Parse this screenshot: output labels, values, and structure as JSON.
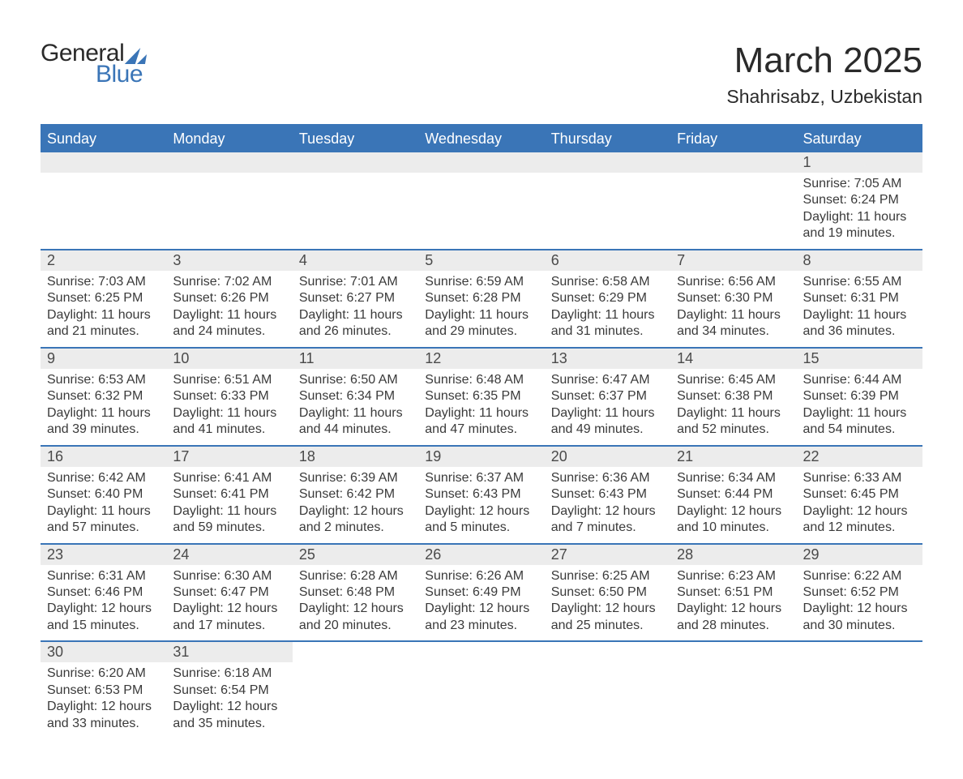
{
  "brand": {
    "word1": "General",
    "word2": "Blue",
    "word1_color": "#2a2a2a",
    "word2_color": "#3a75b7"
  },
  "title": {
    "month_year": "March 2025",
    "location": "Shahrisabz, Uzbekistan",
    "title_fontsize": 44,
    "location_fontsize": 23
  },
  "colors": {
    "header_bg": "#3a75b7",
    "header_text": "#ffffff",
    "daynum_bg": "#ececec",
    "text": "#3a3a3a",
    "row_border": "#3a75b7",
    "page_bg": "#ffffff"
  },
  "weekdays": [
    "Sunday",
    "Monday",
    "Tuesday",
    "Wednesday",
    "Thursday",
    "Friday",
    "Saturday"
  ],
  "weeks": [
    [
      {
        "day": "",
        "sunrise": "",
        "sunset": "",
        "daylight1": "",
        "daylight2": ""
      },
      {
        "day": "",
        "sunrise": "",
        "sunset": "",
        "daylight1": "",
        "daylight2": ""
      },
      {
        "day": "",
        "sunrise": "",
        "sunset": "",
        "daylight1": "",
        "daylight2": ""
      },
      {
        "day": "",
        "sunrise": "",
        "sunset": "",
        "daylight1": "",
        "daylight2": ""
      },
      {
        "day": "",
        "sunrise": "",
        "sunset": "",
        "daylight1": "",
        "daylight2": ""
      },
      {
        "day": "",
        "sunrise": "",
        "sunset": "",
        "daylight1": "",
        "daylight2": ""
      },
      {
        "day": "1",
        "sunrise": "Sunrise: 7:05 AM",
        "sunset": "Sunset: 6:24 PM",
        "daylight1": "Daylight: 11 hours",
        "daylight2": "and 19 minutes."
      }
    ],
    [
      {
        "day": "2",
        "sunrise": "Sunrise: 7:03 AM",
        "sunset": "Sunset: 6:25 PM",
        "daylight1": "Daylight: 11 hours",
        "daylight2": "and 21 minutes."
      },
      {
        "day": "3",
        "sunrise": "Sunrise: 7:02 AM",
        "sunset": "Sunset: 6:26 PM",
        "daylight1": "Daylight: 11 hours",
        "daylight2": "and 24 minutes."
      },
      {
        "day": "4",
        "sunrise": "Sunrise: 7:01 AM",
        "sunset": "Sunset: 6:27 PM",
        "daylight1": "Daylight: 11 hours",
        "daylight2": "and 26 minutes."
      },
      {
        "day": "5",
        "sunrise": "Sunrise: 6:59 AM",
        "sunset": "Sunset: 6:28 PM",
        "daylight1": "Daylight: 11 hours",
        "daylight2": "and 29 minutes."
      },
      {
        "day": "6",
        "sunrise": "Sunrise: 6:58 AM",
        "sunset": "Sunset: 6:29 PM",
        "daylight1": "Daylight: 11 hours",
        "daylight2": "and 31 minutes."
      },
      {
        "day": "7",
        "sunrise": "Sunrise: 6:56 AM",
        "sunset": "Sunset: 6:30 PM",
        "daylight1": "Daylight: 11 hours",
        "daylight2": "and 34 minutes."
      },
      {
        "day": "8",
        "sunrise": "Sunrise: 6:55 AM",
        "sunset": "Sunset: 6:31 PM",
        "daylight1": "Daylight: 11 hours",
        "daylight2": "and 36 minutes."
      }
    ],
    [
      {
        "day": "9",
        "sunrise": "Sunrise: 6:53 AM",
        "sunset": "Sunset: 6:32 PM",
        "daylight1": "Daylight: 11 hours",
        "daylight2": "and 39 minutes."
      },
      {
        "day": "10",
        "sunrise": "Sunrise: 6:51 AM",
        "sunset": "Sunset: 6:33 PM",
        "daylight1": "Daylight: 11 hours",
        "daylight2": "and 41 minutes."
      },
      {
        "day": "11",
        "sunrise": "Sunrise: 6:50 AM",
        "sunset": "Sunset: 6:34 PM",
        "daylight1": "Daylight: 11 hours",
        "daylight2": "and 44 minutes."
      },
      {
        "day": "12",
        "sunrise": "Sunrise: 6:48 AM",
        "sunset": "Sunset: 6:35 PM",
        "daylight1": "Daylight: 11 hours",
        "daylight2": "and 47 minutes."
      },
      {
        "day": "13",
        "sunrise": "Sunrise: 6:47 AM",
        "sunset": "Sunset: 6:37 PM",
        "daylight1": "Daylight: 11 hours",
        "daylight2": "and 49 minutes."
      },
      {
        "day": "14",
        "sunrise": "Sunrise: 6:45 AM",
        "sunset": "Sunset: 6:38 PM",
        "daylight1": "Daylight: 11 hours",
        "daylight2": "and 52 minutes."
      },
      {
        "day": "15",
        "sunrise": "Sunrise: 6:44 AM",
        "sunset": "Sunset: 6:39 PM",
        "daylight1": "Daylight: 11 hours",
        "daylight2": "and 54 minutes."
      }
    ],
    [
      {
        "day": "16",
        "sunrise": "Sunrise: 6:42 AM",
        "sunset": "Sunset: 6:40 PM",
        "daylight1": "Daylight: 11 hours",
        "daylight2": "and 57 minutes."
      },
      {
        "day": "17",
        "sunrise": "Sunrise: 6:41 AM",
        "sunset": "Sunset: 6:41 PM",
        "daylight1": "Daylight: 11 hours",
        "daylight2": "and 59 minutes."
      },
      {
        "day": "18",
        "sunrise": "Sunrise: 6:39 AM",
        "sunset": "Sunset: 6:42 PM",
        "daylight1": "Daylight: 12 hours",
        "daylight2": "and 2 minutes."
      },
      {
        "day": "19",
        "sunrise": "Sunrise: 6:37 AM",
        "sunset": "Sunset: 6:43 PM",
        "daylight1": "Daylight: 12 hours",
        "daylight2": "and 5 minutes."
      },
      {
        "day": "20",
        "sunrise": "Sunrise: 6:36 AM",
        "sunset": "Sunset: 6:43 PM",
        "daylight1": "Daylight: 12 hours",
        "daylight2": "and 7 minutes."
      },
      {
        "day": "21",
        "sunrise": "Sunrise: 6:34 AM",
        "sunset": "Sunset: 6:44 PM",
        "daylight1": "Daylight: 12 hours",
        "daylight2": "and 10 minutes."
      },
      {
        "day": "22",
        "sunrise": "Sunrise: 6:33 AM",
        "sunset": "Sunset: 6:45 PM",
        "daylight1": "Daylight: 12 hours",
        "daylight2": "and 12 minutes."
      }
    ],
    [
      {
        "day": "23",
        "sunrise": "Sunrise: 6:31 AM",
        "sunset": "Sunset: 6:46 PM",
        "daylight1": "Daylight: 12 hours",
        "daylight2": "and 15 minutes."
      },
      {
        "day": "24",
        "sunrise": "Sunrise: 6:30 AM",
        "sunset": "Sunset: 6:47 PM",
        "daylight1": "Daylight: 12 hours",
        "daylight2": "and 17 minutes."
      },
      {
        "day": "25",
        "sunrise": "Sunrise: 6:28 AM",
        "sunset": "Sunset: 6:48 PM",
        "daylight1": "Daylight: 12 hours",
        "daylight2": "and 20 minutes."
      },
      {
        "day": "26",
        "sunrise": "Sunrise: 6:26 AM",
        "sunset": "Sunset: 6:49 PM",
        "daylight1": "Daylight: 12 hours",
        "daylight2": "and 23 minutes."
      },
      {
        "day": "27",
        "sunrise": "Sunrise: 6:25 AM",
        "sunset": "Sunset: 6:50 PM",
        "daylight1": "Daylight: 12 hours",
        "daylight2": "and 25 minutes."
      },
      {
        "day": "28",
        "sunrise": "Sunrise: 6:23 AM",
        "sunset": "Sunset: 6:51 PM",
        "daylight1": "Daylight: 12 hours",
        "daylight2": "and 28 minutes."
      },
      {
        "day": "29",
        "sunrise": "Sunrise: 6:22 AM",
        "sunset": "Sunset: 6:52 PM",
        "daylight1": "Daylight: 12 hours",
        "daylight2": "and 30 minutes."
      }
    ],
    [
      {
        "day": "30",
        "sunrise": "Sunrise: 6:20 AM",
        "sunset": "Sunset: 6:53 PM",
        "daylight1": "Daylight: 12 hours",
        "daylight2": "and 33 minutes."
      },
      {
        "day": "31",
        "sunrise": "Sunrise: 6:18 AM",
        "sunset": "Sunset: 6:54 PM",
        "daylight1": "Daylight: 12 hours",
        "daylight2": "and 35 minutes."
      },
      {
        "day": "",
        "sunrise": "",
        "sunset": "",
        "daylight1": "",
        "daylight2": ""
      },
      {
        "day": "",
        "sunrise": "",
        "sunset": "",
        "daylight1": "",
        "daylight2": ""
      },
      {
        "day": "",
        "sunrise": "",
        "sunset": "",
        "daylight1": "",
        "daylight2": ""
      },
      {
        "day": "",
        "sunrise": "",
        "sunset": "",
        "daylight1": "",
        "daylight2": ""
      },
      {
        "day": "",
        "sunrise": "",
        "sunset": "",
        "daylight1": "",
        "daylight2": ""
      }
    ]
  ]
}
